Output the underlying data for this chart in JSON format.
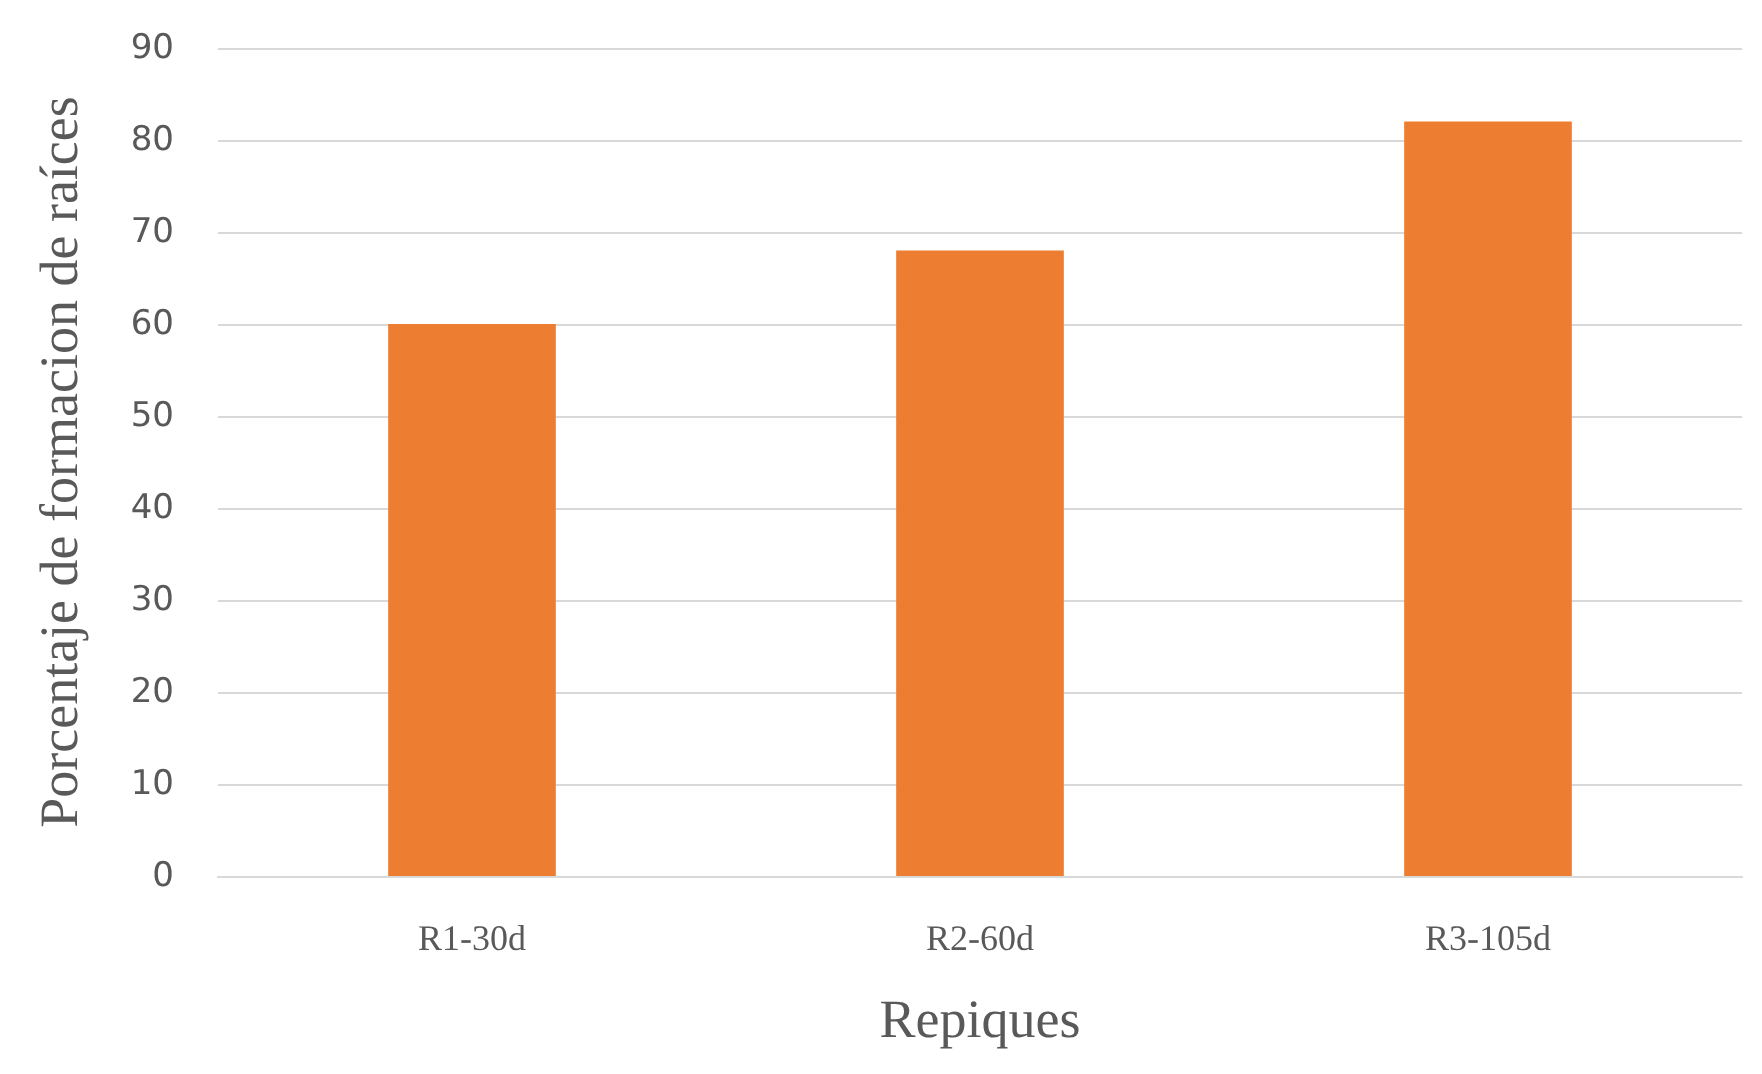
{
  "chart_data": {
    "type": "bar",
    "xlabel": "Repiques",
    "ylabel": "Porcentaje de formacion de raíces",
    "categories": [
      "R1-30d",
      "R2-60d",
      "R3-105d"
    ],
    "values": [
      60,
      68,
      82
    ],
    "color": "#ed7d31",
    "ylim": [
      0,
      90
    ],
    "yticks": [
      0,
      10,
      20,
      30,
      40,
      50,
      60,
      70,
      80,
      90
    ],
    "grid": "y"
  }
}
